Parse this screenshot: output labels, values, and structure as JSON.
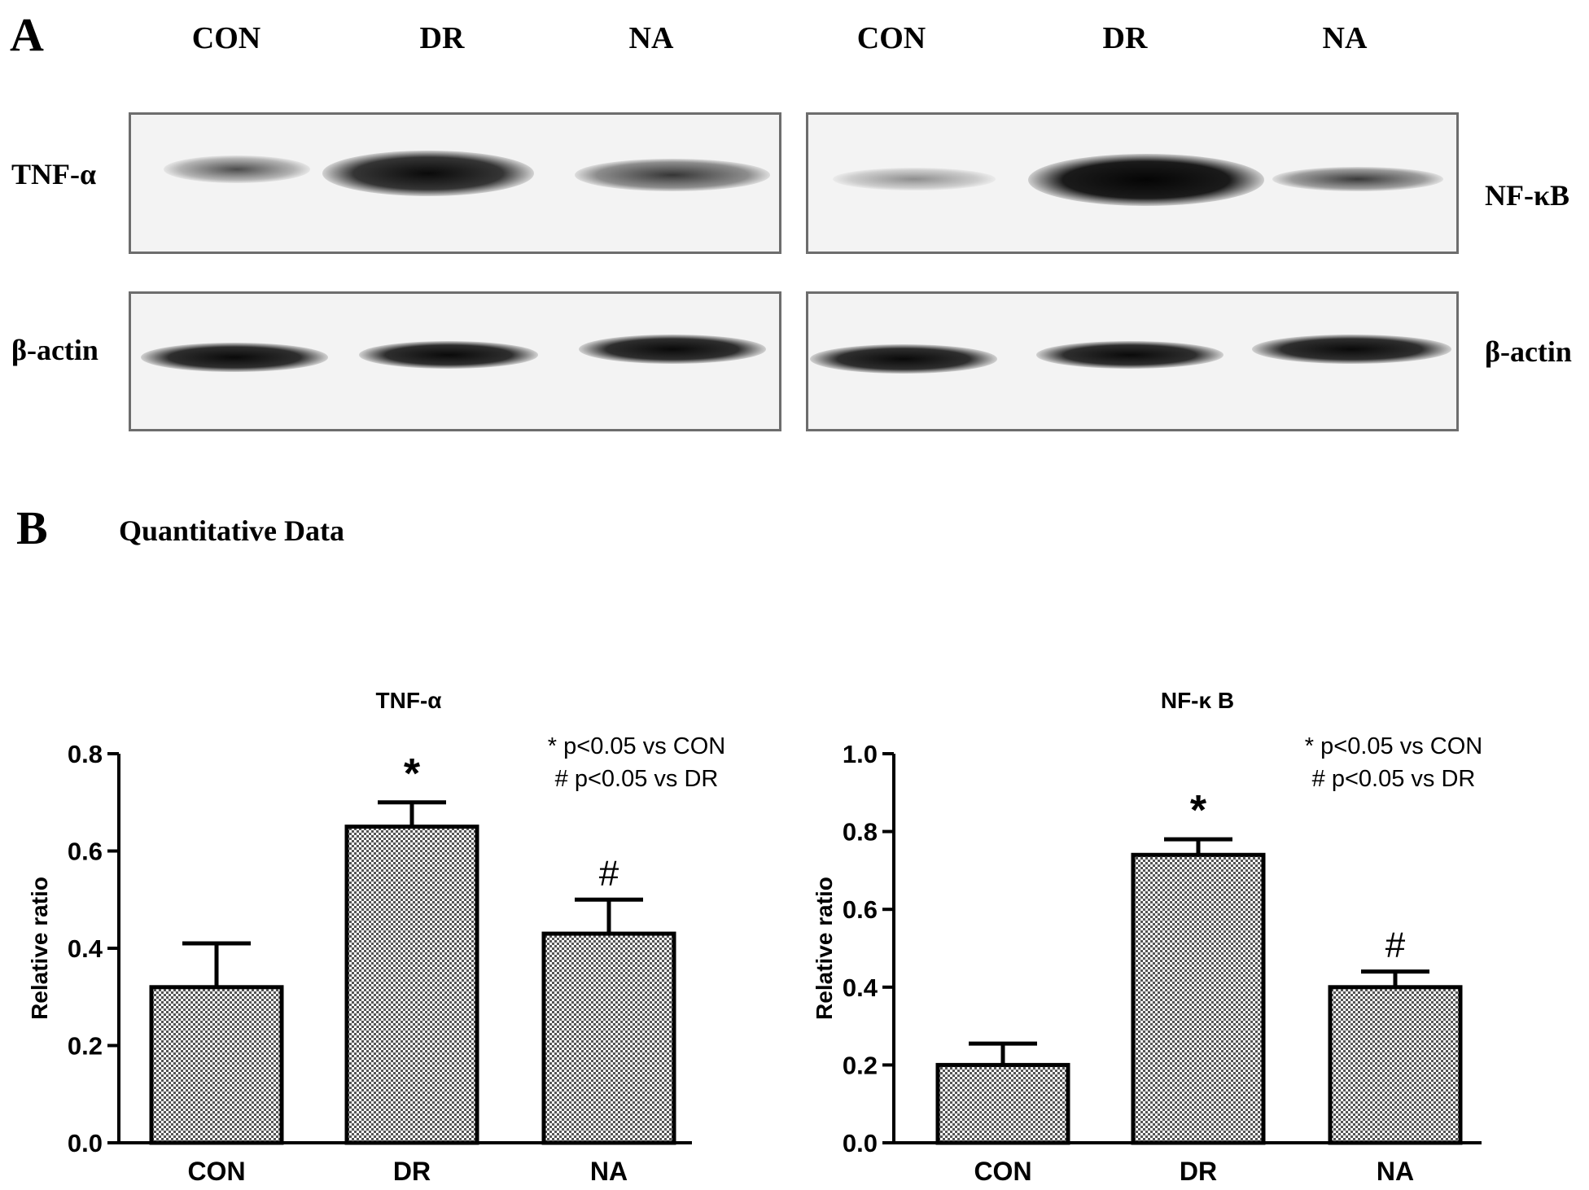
{
  "panel_a": {
    "letter": "A",
    "lanes_left": [
      "CON",
      "DR",
      "NA"
    ],
    "lanes_right": [
      "CON",
      "DR",
      "NA"
    ],
    "left_top_protein": "TNF-α",
    "left_bottom_protein": "β-actin",
    "right_top_protein": "NF-κB",
    "right_bottom_protein": "β-actin"
  },
  "panel_b": {
    "letter": "B",
    "title": "Quantitative Data"
  },
  "colors": {
    "bar_fill": "#a9a9a9",
    "bar_stroke": "#000000",
    "blot_border": "#6d6d6d",
    "band": "#111111"
  },
  "chart_data": [
    {
      "type": "bar",
      "title": "TNF-α",
      "categories": [
        "CON",
        "DR",
        "NA"
      ],
      "values": [
        0.32,
        0.65,
        0.43
      ],
      "errors": [
        0.09,
        0.05,
        0.07
      ],
      "marks": [
        "",
        "*",
        "#"
      ],
      "xlabel": "",
      "ylabel": "Relative ratio",
      "ylim": [
        0,
        0.8
      ],
      "yticks": [
        "0.0",
        "0.2",
        "0.4",
        "0.6",
        "0.8"
      ],
      "annotations": [
        "* p<0.05 vs CON",
        "# p<0.05 vs DR"
      ],
      "grid": false,
      "legend": "none"
    },
    {
      "type": "bar",
      "title": "NF-κ B",
      "categories": [
        "CON",
        "DR",
        "NA"
      ],
      "values": [
        0.2,
        0.74,
        0.4
      ],
      "errors": [
        0.055,
        0.04,
        0.04
      ],
      "marks": [
        "",
        "*",
        "#"
      ],
      "xlabel": "",
      "ylabel": "Relative ratio",
      "ylim": [
        0,
        1.0
      ],
      "yticks": [
        "0.0",
        "0.2",
        "0.4",
        "0.6",
        "0.8",
        "1.0"
      ],
      "annotations": [
        "* p<0.05 vs CON",
        "# p<0.05 vs DR"
      ],
      "grid": false,
      "legend": "none"
    }
  ]
}
